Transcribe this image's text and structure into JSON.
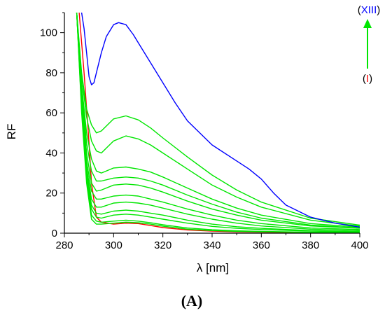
{
  "chart_data": {
    "type": "line",
    "xlabel": "λ [nm]",
    "ylabel": "RF",
    "panel_label": "(A)",
    "xlim": [
      280,
      400
    ],
    "ylim": [
      0,
      110
    ],
    "xticks": [
      280,
      300,
      320,
      340,
      360,
      380,
      400
    ],
    "yticks": [
      0,
      20,
      40,
      60,
      80,
      100
    ],
    "grid": false,
    "annotation": {
      "top_open": "(",
      "top_roman": "XIII",
      "top_close": ")",
      "bottom_open": "(",
      "bottom_roman": "I",
      "bottom_close": ")",
      "top_roman_color": "#0000ff",
      "bottom_roman_color": "#ff0000",
      "arrow_color": "#00e600",
      "arrow_direction": "up"
    },
    "series": [
      {
        "color": "#ff0000",
        "x": [
          286,
          288,
          290,
          291,
          293,
          295,
          300,
          305,
          310,
          315,
          320,
          330,
          340,
          350,
          360,
          380,
          400
        ],
        "y": [
          110,
          80,
          45,
          25,
          8,
          5.5,
          4.5,
          5,
          4.8,
          3.8,
          2.8,
          1.6,
          1.0,
          0.7,
          0.5,
          0.3,
          0.2
        ]
      },
      {
        "color": "#00e600",
        "x": [
          285,
          287,
          289,
          291,
          293,
          295,
          300,
          305,
          310,
          315,
          320,
          330,
          340,
          350,
          360,
          380,
          400
        ],
        "y": [
          110,
          60,
          25,
          7,
          4.5,
          4.5,
          5,
          5.5,
          5.2,
          4.5,
          3.5,
          2,
          1.3,
          0.9,
          0.7,
          0.4,
          0.3
        ]
      },
      {
        "color": "#00e600",
        "x": [
          285,
          287,
          289,
          291,
          293,
          295,
          300,
          305,
          310,
          315,
          320,
          330,
          340,
          350,
          360,
          380,
          400
        ],
        "y": [
          110,
          62,
          27,
          9,
          6,
          5.5,
          6,
          6.5,
          6,
          5.2,
          4.2,
          2.6,
          1.7,
          1.2,
          0.9,
          0.5,
          0.4
        ]
      },
      {
        "color": "#00e600",
        "x": [
          285,
          287,
          289,
          291,
          293,
          295,
          300,
          305,
          310,
          315,
          320,
          330,
          340,
          350,
          360,
          380,
          400
        ],
        "y": [
          110,
          64,
          29,
          12,
          8,
          7.5,
          9,
          9.5,
          9,
          8,
          7,
          5,
          3.4,
          2.4,
          1.8,
          1,
          0.6
        ]
      },
      {
        "color": "#00e600",
        "x": [
          285,
          287,
          289,
          291,
          293,
          295,
          300,
          305,
          310,
          315,
          320,
          330,
          340,
          350,
          360,
          380,
          400
        ],
        "y": [
          110,
          65,
          31,
          14,
          10,
          9.5,
          11,
          11.5,
          11,
          10,
          9,
          6.5,
          4.5,
          3.2,
          2.4,
          1.3,
          0.8
        ]
      },
      {
        "color": "#00e600",
        "x": [
          285,
          287,
          289,
          291,
          293,
          295,
          300,
          305,
          310,
          315,
          320,
          330,
          340,
          350,
          360,
          380,
          400
        ],
        "y": [
          110,
          66,
          33,
          17,
          13,
          13,
          15,
          15.5,
          15,
          14,
          12.5,
          9.5,
          7,
          5,
          3.6,
          2,
          1.3
        ]
      },
      {
        "color": "#00e600",
        "x": [
          285,
          287,
          289,
          291,
          293,
          295,
          300,
          305,
          310,
          315,
          320,
          330,
          340,
          350,
          360,
          380,
          400
        ],
        "y": [
          110,
          68,
          36,
          21,
          17,
          17,
          18.5,
          19,
          18.5,
          17,
          15.5,
          12,
          9,
          6.5,
          4.8,
          2.6,
          1.8
        ]
      },
      {
        "color": "#00e600",
        "x": [
          285,
          287,
          289,
          291,
          293,
          295,
          300,
          305,
          310,
          315,
          320,
          330,
          340,
          350,
          360,
          380,
          400
        ],
        "y": [
          110,
          70,
          40,
          25,
          21,
          21.5,
          24,
          24.5,
          24,
          22.5,
          20.5,
          16,
          12,
          9,
          6.5,
          3.6,
          2.4
        ]
      },
      {
        "color": "#00e600",
        "x": [
          285,
          287,
          289,
          291,
          293,
          295,
          300,
          305,
          310,
          315,
          320,
          330,
          340,
          350,
          360,
          380,
          400
        ],
        "y": [
          110,
          72,
          45,
          31,
          26,
          26,
          27.5,
          28,
          27.5,
          26,
          24,
          19,
          14.5,
          10.5,
          7.5,
          4,
          2.6
        ]
      },
      {
        "color": "#00e600",
        "x": [
          285,
          287,
          289,
          291,
          293,
          295,
          300,
          305,
          310,
          315,
          320,
          330,
          340,
          350,
          360,
          380,
          400
        ],
        "y": [
          110,
          74,
          50,
          37,
          31,
          30,
          32.5,
          33,
          32,
          30.5,
          28,
          22.5,
          17,
          12.5,
          9,
          4.8,
          3
        ]
      },
      {
        "color": "#00e600",
        "x": [
          285,
          287,
          289,
          291,
          293,
          295,
          300,
          305,
          310,
          315,
          320,
          330,
          340,
          350,
          360,
          380,
          400
        ],
        "y": [
          110,
          78,
          58,
          46,
          41,
          40,
          46,
          48.5,
          47,
          44,
          40,
          32,
          24,
          18,
          13,
          6.5,
          3.5
        ]
      },
      {
        "color": "#00e600",
        "x": [
          285,
          287,
          289,
          291,
          293,
          295,
          300,
          305,
          310,
          315,
          320,
          330,
          340,
          350,
          360,
          380,
          400
        ],
        "y": [
          110,
          80,
          62,
          54,
          50,
          51,
          57,
          58.5,
          56.5,
          52.5,
          47.5,
          38,
          29,
          21.5,
          15.5,
          7.5,
          4
        ]
      },
      {
        "color": "#0000ff",
        "x": [
          287,
          288,
          289,
          290,
          291,
          292,
          293,
          295,
          297,
          300,
          302,
          305,
          308,
          310,
          315,
          320,
          325,
          330,
          340,
          350,
          355,
          360,
          365,
          370,
          380,
          390,
          400
        ],
        "y": [
          110,
          102,
          90,
          78,
          74,
          75,
          80,
          90,
          98,
          104,
          105,
          104,
          99,
          95,
          85,
          75,
          65,
          56,
          44,
          36,
          32,
          27,
          20,
          14,
          8,
          5,
          3
        ]
      }
    ]
  }
}
